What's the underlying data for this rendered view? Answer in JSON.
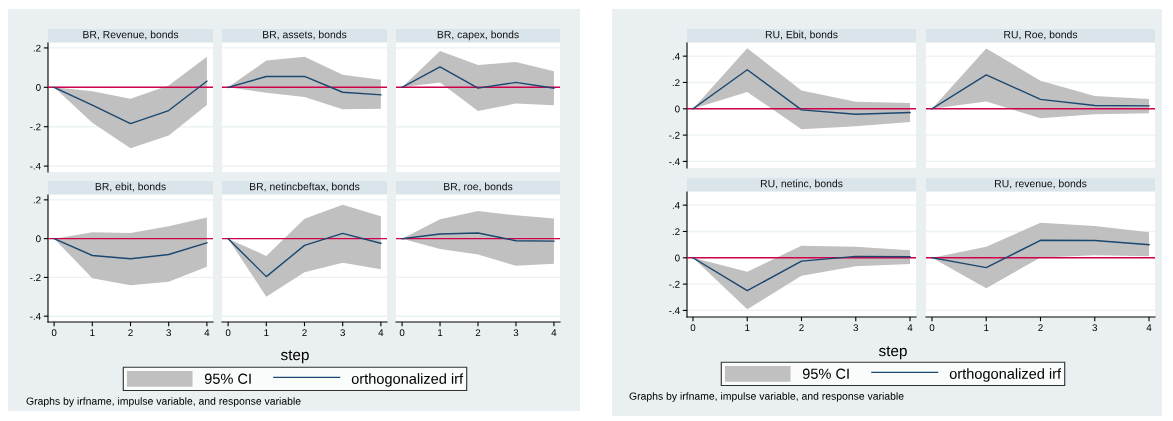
{
  "chart_data": [
    {
      "type": "line",
      "title": "BR, Revenue, bonds",
      "x": [
        0,
        1,
        2,
        3,
        4
      ],
      "xlim": [
        -0.16,
        4.16
      ],
      "ylim": [
        -0.43,
        0.225
      ],
      "yticks": [
        {
          "value": 0.2,
          "label": ".2"
        },
        0,
        {
          "value": -0.2,
          "label": "-.2"
        },
        {
          "value": -0.4,
          "label": "-.4"
        }
      ],
      "tick_labels": "y",
      "grid": "y",
      "ref_lines": [
        {
          "axis": "y",
          "value": 0,
          "color": "#d0004c"
        }
      ],
      "series": [
        {
          "color": "#1a476f",
          "values": [
            0,
            -0.09,
            -0.184,
            -0.118,
            0.031
          ],
          "lower": [
            0,
            -0.18,
            -0.31,
            -0.245,
            -0.09
          ],
          "upper": [
            0,
            -0.02,
            -0.058,
            0.009,
            0.155
          ]
        }
      ]
    },
    {
      "type": "line",
      "title": "BR, assets, bonds",
      "x": [
        0,
        1,
        2,
        3,
        4
      ],
      "xlim": [
        -0.16,
        4.16
      ],
      "ylim": [
        -0.43,
        0.225
      ],
      "yticks": [
        {
          "value": 0.2,
          "label": null
        },
        {
          "value": 0,
          "label": null
        },
        {
          "value": -0.2,
          "label": null
        },
        {
          "value": -0.4,
          "label": null
        }
      ],
      "tick_labels": false,
      "grid": "y",
      "ref_lines": [
        {
          "axis": "y",
          "value": 0,
          "color": "#d0004c"
        }
      ],
      "series": [
        {
          "color": "#1a476f",
          "values": [
            0,
            0.055,
            0.055,
            -0.025,
            -0.038
          ],
          "lower": [
            0,
            -0.027,
            -0.049,
            -0.111,
            -0.109
          ],
          "upper": [
            0,
            0.136,
            0.155,
            0.064,
            0.038
          ]
        }
      ]
    },
    {
      "type": "line",
      "title": "BR, capex, bonds",
      "x": [
        0,
        1,
        2,
        3,
        4
      ],
      "xlim": [
        -0.16,
        4.16
      ],
      "ylim": [
        -0.43,
        0.225
      ],
      "yticks": [
        {
          "value": 0.2,
          "label": null
        },
        {
          "value": 0,
          "label": null
        },
        {
          "value": -0.2,
          "label": null
        },
        {
          "value": -0.4,
          "label": null
        }
      ],
      "tick_labels": false,
      "grid": "y",
      "ref_lines": [
        {
          "axis": "y",
          "value": 0,
          "color": "#d0004c"
        }
      ],
      "series": [
        {
          "color": "#1a476f",
          "values": [
            0,
            0.104,
            -0.004,
            0.025,
            -0.004
          ],
          "lower": [
            0,
            0.025,
            -0.12,
            -0.082,
            -0.091
          ],
          "upper": [
            0,
            0.185,
            0.113,
            0.129,
            0.082
          ]
        }
      ]
    },
    {
      "type": "line",
      "title": "BR, ebit, bonds",
      "x": [
        0,
        1,
        2,
        3,
        4
      ],
      "xlim": [
        -0.16,
        4.16
      ],
      "xticks": [
        0,
        1,
        2,
        3,
        4
      ],
      "ylim": [
        -0.43,
        0.225
      ],
      "yticks": [
        {
          "value": 0.2,
          "label": ".2"
        },
        0,
        {
          "value": -0.2,
          "label": "-.2"
        },
        {
          "value": -0.4,
          "label": "-.4"
        }
      ],
      "grid": "y",
      "ref_lines": [
        {
          "axis": "y",
          "value": 0,
          "color": "#d0004c"
        }
      ],
      "series": [
        {
          "color": "#1a476f",
          "values": [
            0,
            -0.087,
            -0.104,
            -0.082,
            -0.022
          ],
          "lower": [
            0,
            -0.204,
            -0.24,
            -0.222,
            -0.145
          ],
          "upper": [
            0,
            0.033,
            0.029,
            0.064,
            0.109
          ]
        }
      ]
    },
    {
      "type": "line",
      "title": "BR, netincbeftax, bonds",
      "xlabel": "step",
      "legend": "bottom",
      "annotations": [
        "95% CI",
        "Graphs by irfname, impulse variable, and response variable"
      ],
      "x": [
        0,
        1,
        2,
        3,
        4
      ],
      "xlim": [
        -0.16,
        4.16
      ],
      "xticks": [
        0,
        1,
        2,
        3,
        4
      ],
      "ylim": [
        -0.43,
        0.225
      ],
      "yticks": [
        {
          "value": 0.2,
          "label": null
        },
        {
          "value": 0,
          "label": null
        },
        {
          "value": -0.2,
          "label": null
        },
        {
          "value": -0.4,
          "label": null
        }
      ],
      "tick_labels": "x",
      "grid": "y",
      "ref_lines": [
        {
          "axis": "y",
          "value": 0,
          "color": "#d0004c"
        }
      ],
      "series": [
        {
          "name": "orthogonalized irf",
          "color": "#1a476f",
          "values": [
            0,
            -0.196,
            -0.035,
            0.027,
            -0.024
          ],
          "lower": [
            0,
            -0.3,
            -0.173,
            -0.124,
            -0.158
          ],
          "upper": [
            0,
            -0.089,
            0.102,
            0.175,
            0.115
          ]
        }
      ]
    },
    {
      "type": "line",
      "title": "BR, roe, bonds",
      "x": [
        0,
        1,
        2,
        3,
        4
      ],
      "xlim": [
        -0.16,
        4.16
      ],
      "xticks": [
        0,
        1,
        2,
        3,
        4
      ],
      "ylim": [
        -0.43,
        0.225
      ],
      "yticks": [
        {
          "value": 0.2,
          "label": null
        },
        {
          "value": 0,
          "label": null
        },
        {
          "value": -0.2,
          "label": null
        },
        {
          "value": -0.4,
          "label": null
        }
      ],
      "tick_labels": "x",
      "grid": "y",
      "ref_lines": [
        {
          "axis": "y",
          "value": 0,
          "color": "#d0004c"
        }
      ],
      "series": [
        {
          "color": "#1a476f",
          "values": [
            0,
            0.024,
            0.029,
            -0.011,
            -0.013
          ],
          "lower": [
            0,
            -0.053,
            -0.082,
            -0.14,
            -0.129
          ],
          "upper": [
            0,
            0.1,
            0.142,
            0.12,
            0.104
          ]
        }
      ]
    },
    {
      "type": "line",
      "title": "RU, Ebit, bonds",
      "x": [
        0,
        1,
        2,
        3,
        4
      ],
      "xlim": [
        -0.11,
        4.11
      ],
      "ylim": [
        -0.45,
        0.5
      ],
      "yticks": [
        {
          "value": 0.4,
          "label": ".4"
        },
        {
          "value": 0.2,
          "label": ".2"
        },
        0,
        {
          "value": -0.2,
          "label": "-.2"
        },
        {
          "value": -0.4,
          "label": "-.4"
        }
      ],
      "tick_labels": "y",
      "grid": "y",
      "ref_lines": [
        {
          "axis": "y",
          "value": 0,
          "color": "#d0004c"
        }
      ],
      "series": [
        {
          "color": "#1a476f",
          "values": [
            0,
            0.297,
            -0.008,
            -0.042,
            -0.028
          ],
          "lower": [
            0,
            0.128,
            -0.156,
            -0.133,
            -0.1
          ],
          "upper": [
            0,
            0.461,
            0.139,
            0.053,
            0.044
          ]
        }
      ]
    },
    {
      "type": "line",
      "title": "RU, Roe, bonds",
      "x": [
        0,
        1,
        2,
        3,
        4
      ],
      "xlim": [
        -0.11,
        4.11
      ],
      "ylim": [
        -0.45,
        0.5
      ],
      "yticks": [
        {
          "value": 0.4,
          "label": null
        },
        {
          "value": 0.2,
          "label": null
        },
        {
          "value": 0,
          "label": null
        },
        {
          "value": -0.2,
          "label": null
        },
        {
          "value": -0.4,
          "label": null
        }
      ],
      "tick_labels": false,
      "grid": "y",
      "ref_lines": [
        {
          "axis": "y",
          "value": 0,
          "color": "#d0004c"
        }
      ],
      "series": [
        {
          "color": "#1a476f",
          "values": [
            0,
            0.258,
            0.072,
            0.025,
            0.022
          ],
          "lower": [
            0,
            0.056,
            -0.072,
            -0.042,
            -0.033
          ],
          "upper": [
            0,
            0.458,
            0.214,
            0.097,
            0.075
          ]
        }
      ]
    },
    {
      "type": "line",
      "title": "RU, netinc, bonds",
      "xlabel": "step",
      "legend": "bottom",
      "annotations": [
        "95% CI",
        "Graphs by irfname, impulse variable, and response variable"
      ],
      "x": [
        0,
        1,
        2,
        3,
        4
      ],
      "xlim": [
        -0.11,
        4.11
      ],
      "xticks": [
        0,
        1,
        2,
        3,
        4
      ],
      "ylim": [
        -0.45,
        0.5
      ],
      "yticks": [
        {
          "value": 0.4,
          "label": ".4"
        },
        {
          "value": 0.2,
          "label": ".2"
        },
        0,
        {
          "value": -0.2,
          "label": "-.2"
        },
        {
          "value": -0.4,
          "label": "-.4"
        }
      ],
      "grid": "y",
      "ref_lines": [
        {
          "axis": "y",
          "value": 0,
          "color": "#d0004c"
        }
      ],
      "series": [
        {
          "name": "orthogonalized irf",
          "color": "#1a476f",
          "values": [
            0,
            -0.25,
            -0.025,
            0.011,
            0.008
          ],
          "lower": [
            0,
            -0.392,
            -0.136,
            -0.064,
            -0.047
          ],
          "upper": [
            0,
            -0.106,
            0.092,
            0.083,
            0.058
          ]
        }
      ]
    },
    {
      "type": "line",
      "title": "RU, revenue, bonds",
      "x": [
        0,
        1,
        2,
        3,
        4
      ],
      "xlim": [
        -0.11,
        4.11
      ],
      "xticks": [
        0,
        1,
        2,
        3,
        4
      ],
      "ylim": [
        -0.45,
        0.5
      ],
      "yticks": [
        {
          "value": 0.4,
          "label": null
        },
        {
          "value": 0.2,
          "label": null
        },
        {
          "value": 0,
          "label": null
        },
        {
          "value": -0.2,
          "label": null
        },
        {
          "value": -0.4,
          "label": null
        }
      ],
      "tick_labels": "x",
      "grid": "y",
      "ref_lines": [
        {
          "axis": "y",
          "value": 0,
          "color": "#d0004c"
        }
      ],
      "series": [
        {
          "color": "#1a476f",
          "values": [
            0,
            -0.075,
            0.133,
            0.131,
            0.1
          ],
          "lower": [
            0,
            -0.231,
            0.003,
            0.019,
            0.011
          ],
          "upper": [
            0,
            0.083,
            0.267,
            0.242,
            0.194
          ]
        }
      ]
    }
  ]
}
